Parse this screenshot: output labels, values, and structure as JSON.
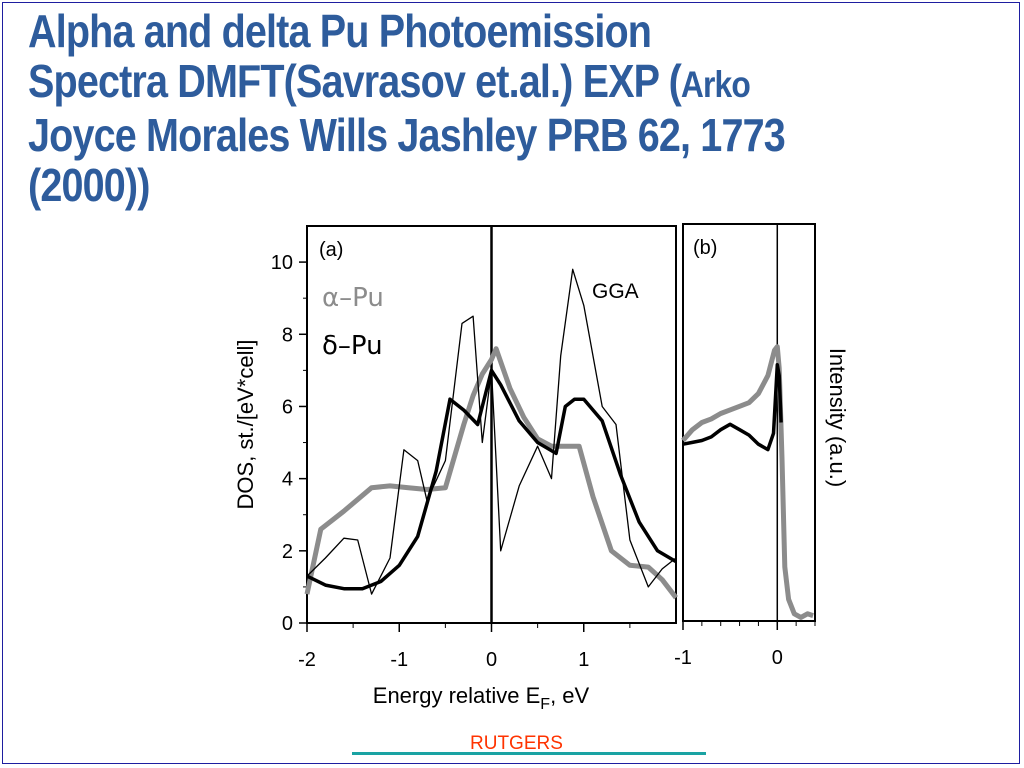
{
  "title": {
    "line1": "Alpha and delta Pu Photoemission",
    "line2_main": "Spectra DMFT(Savrasov et.al.) EXP (",
    "line2_small": "Arko",
    "line3": "Joyce Morales Wills Jashley PRB 62, 1773",
    "line4": "(2000))"
  },
  "footer": {
    "label": "RUTGERS"
  },
  "colors": {
    "title": "#2e5c9c",
    "alpha_pu": "#8c8c8c",
    "delta_pu": "#000000",
    "footer_text": "#ff3300",
    "footer_line": "#1aa3a3"
  },
  "chart_data": [
    {
      "type": "line",
      "panel_label": "(a)",
      "annotation": "GGA",
      "ylabel": "DOS, st./[eV*cell]",
      "xlim": [
        -2,
        2
      ],
      "ylim": [
        0,
        11
      ],
      "x_ticks": [
        -2,
        -1,
        0,
        1
      ],
      "y_ticks": [
        0,
        2,
        4,
        6,
        8,
        10
      ],
      "legend": [
        "α–Pu",
        "δ–Pu"
      ],
      "legend_position": "top-left",
      "series": [
        {
          "name": "α–Pu",
          "style": "thick-gray",
          "x": [
            -2.0,
            -1.85,
            -1.6,
            -1.3,
            -1.1,
            -0.9,
            -0.7,
            -0.5,
            -0.3,
            -0.2,
            -0.1,
            0.0,
            0.05,
            0.2,
            0.35,
            0.5,
            0.65,
            0.8,
            0.95,
            1.1,
            1.3,
            1.5,
            1.7,
            1.85,
            2.0
          ],
          "y": [
            0.8,
            2.6,
            3.1,
            3.75,
            3.8,
            3.75,
            3.7,
            3.75,
            5.5,
            6.3,
            6.9,
            7.3,
            7.6,
            6.5,
            5.7,
            5.1,
            4.9,
            4.9,
            4.9,
            3.5,
            2.0,
            1.6,
            1.55,
            1.2,
            0.7
          ]
        },
        {
          "name": "δ–Pu",
          "style": "thick-black",
          "x": [
            -2.0,
            -1.8,
            -1.6,
            -1.4,
            -1.2,
            -1.0,
            -0.8,
            -0.6,
            -0.45,
            -0.3,
            -0.15,
            0.0,
            0.1,
            0.3,
            0.5,
            0.7,
            0.8,
            0.9,
            1.0,
            1.2,
            1.4,
            1.6,
            1.8,
            2.0
          ],
          "y": [
            1.3,
            1.05,
            0.95,
            0.95,
            1.15,
            1.6,
            2.4,
            4.2,
            6.2,
            5.9,
            5.5,
            7.0,
            6.6,
            5.6,
            5.0,
            4.7,
            6.0,
            6.2,
            6.2,
            5.6,
            4.1,
            2.8,
            2.0,
            1.7
          ]
        },
        {
          "name": "GGA",
          "style": "thin-black",
          "x": [
            -2.0,
            -1.8,
            -1.6,
            -1.45,
            -1.3,
            -1.1,
            -0.95,
            -0.8,
            -0.7,
            -0.5,
            -0.32,
            -0.2,
            -0.1,
            0.0,
            0.1,
            0.3,
            0.5,
            0.65,
            0.75,
            0.88,
            1.0,
            1.2,
            1.35,
            1.5,
            1.7,
            1.85,
            2.0
          ],
          "y": [
            1.3,
            1.8,
            2.35,
            2.3,
            0.8,
            1.8,
            4.8,
            4.5,
            3.4,
            4.5,
            8.3,
            8.5,
            5.0,
            7.0,
            2.0,
            3.8,
            4.9,
            4.0,
            7.4,
            9.8,
            8.8,
            6.0,
            5.5,
            2.3,
            1.0,
            1.5,
            1.8
          ]
        }
      ]
    },
    {
      "type": "line",
      "panel_label": "(b)",
      "ylabel": "Intensity (a.u.)",
      "xlabel": "Energy relative E_F, eV",
      "xlim": [
        -1.0,
        0.4
      ],
      "ylim": [
        0,
        11
      ],
      "x_ticks": [
        -1,
        0
      ],
      "series": [
        {
          "name": "α–Pu",
          "style": "thick-gray",
          "x": [
            -1.0,
            -0.9,
            -0.8,
            -0.7,
            -0.6,
            -0.5,
            -0.4,
            -0.3,
            -0.2,
            -0.1,
            -0.03,
            0.0,
            0.02,
            0.05,
            0.08,
            0.12,
            0.18,
            0.25,
            0.32,
            0.38
          ],
          "y": [
            5.0,
            5.3,
            5.5,
            5.6,
            5.75,
            5.85,
            5.95,
            6.05,
            6.3,
            6.8,
            7.5,
            7.6,
            7.0,
            4.5,
            1.5,
            0.6,
            0.2,
            0.1,
            0.2,
            0.15
          ]
        },
        {
          "name": "δ–Pu",
          "style": "thick-black",
          "x": [
            -1.0,
            -0.9,
            -0.8,
            -0.7,
            -0.6,
            -0.5,
            -0.4,
            -0.3,
            -0.2,
            -0.1,
            -0.04,
            0.0,
            0.02,
            0.04
          ],
          "y": [
            4.9,
            4.95,
            5.0,
            5.1,
            5.3,
            5.45,
            5.3,
            5.15,
            4.9,
            4.75,
            5.2,
            7.1,
            6.8,
            5.5
          ]
        }
      ]
    }
  ]
}
